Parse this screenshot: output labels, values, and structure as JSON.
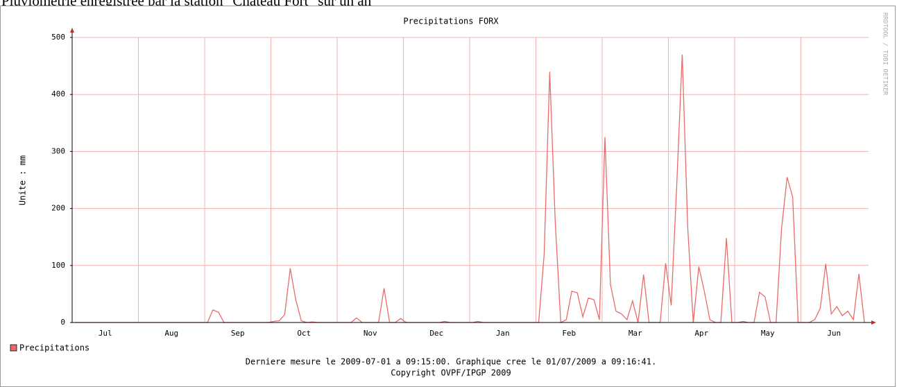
{
  "header": {
    "title": "Pluviométrie enregistrée par la station \"Chateau Fort\" sur un an"
  },
  "chart_data": {
    "type": "line",
    "title": "Precipitations FORX",
    "y_label": "Unite : mm",
    "watermark": "RRDTOOL / TOBI OETIKER",
    "footer": [
      "Derniere mesure le 2009-07-01 a 09:15:00. Graphique cree le 01/07/2009 a 09:16:41.",
      "Copyright OVPF/IPGP 2009"
    ],
    "categories": [
      "Jul",
      "Aug",
      "Sep",
      "Oct",
      "Nov",
      "Dec",
      "Jan",
      "Feb",
      "Mar",
      "Apr",
      "May",
      "Jun"
    ],
    "ylim": [
      0,
      500
    ],
    "yticks": [
      0,
      100,
      200,
      300,
      400,
      500
    ],
    "grid": true,
    "series": [
      {
        "name": "Precipitations",
        "color": "#ea6a6a",
        "values": [
          [
            0,
            0,
            0,
            0,
            0,
            0,
            0,
            0,
            0,
            0,
            0,
            0
          ],
          [
            0,
            0,
            0,
            0,
            0,
            0,
            0,
            0,
            0,
            0,
            0,
            0
          ],
          [
            0,
            22,
            18,
            0,
            0,
            0,
            0,
            0,
            0,
            0,
            0,
            0
          ],
          [
            2,
            3,
            14,
            95,
            40,
            3,
            0,
            1,
            0,
            0,
            0,
            0
          ],
          [
            0,
            0,
            0,
            8,
            0,
            0,
            0,
            0,
            60,
            0,
            0,
            7
          ],
          [
            0,
            0,
            0,
            0,
            0,
            0,
            0,
            2,
            0,
            0,
            0,
            0
          ],
          [
            0,
            2,
            0,
            0,
            0,
            0,
            0,
            0,
            0,
            0,
            0,
            0
          ],
          [
            0,
            120,
            440,
            175,
            0,
            5,
            55,
            52,
            10,
            43,
            40,
            5
          ],
          [
            325,
            67,
            20,
            15,
            5,
            38,
            0,
            84,
            0,
            0,
            0,
            104
          ],
          [
            30,
            238,
            470,
            165,
            0,
            98,
            55,
            5,
            0,
            0,
            148,
            0
          ],
          [
            0,
            2,
            0,
            0,
            53,
            45,
            0,
            0,
            165,
            255,
            220,
            0
          ],
          [
            0,
            0,
            5,
            25,
            103,
            15,
            28,
            12,
            20,
            5,
            85,
            0
          ]
        ]
      }
    ]
  }
}
